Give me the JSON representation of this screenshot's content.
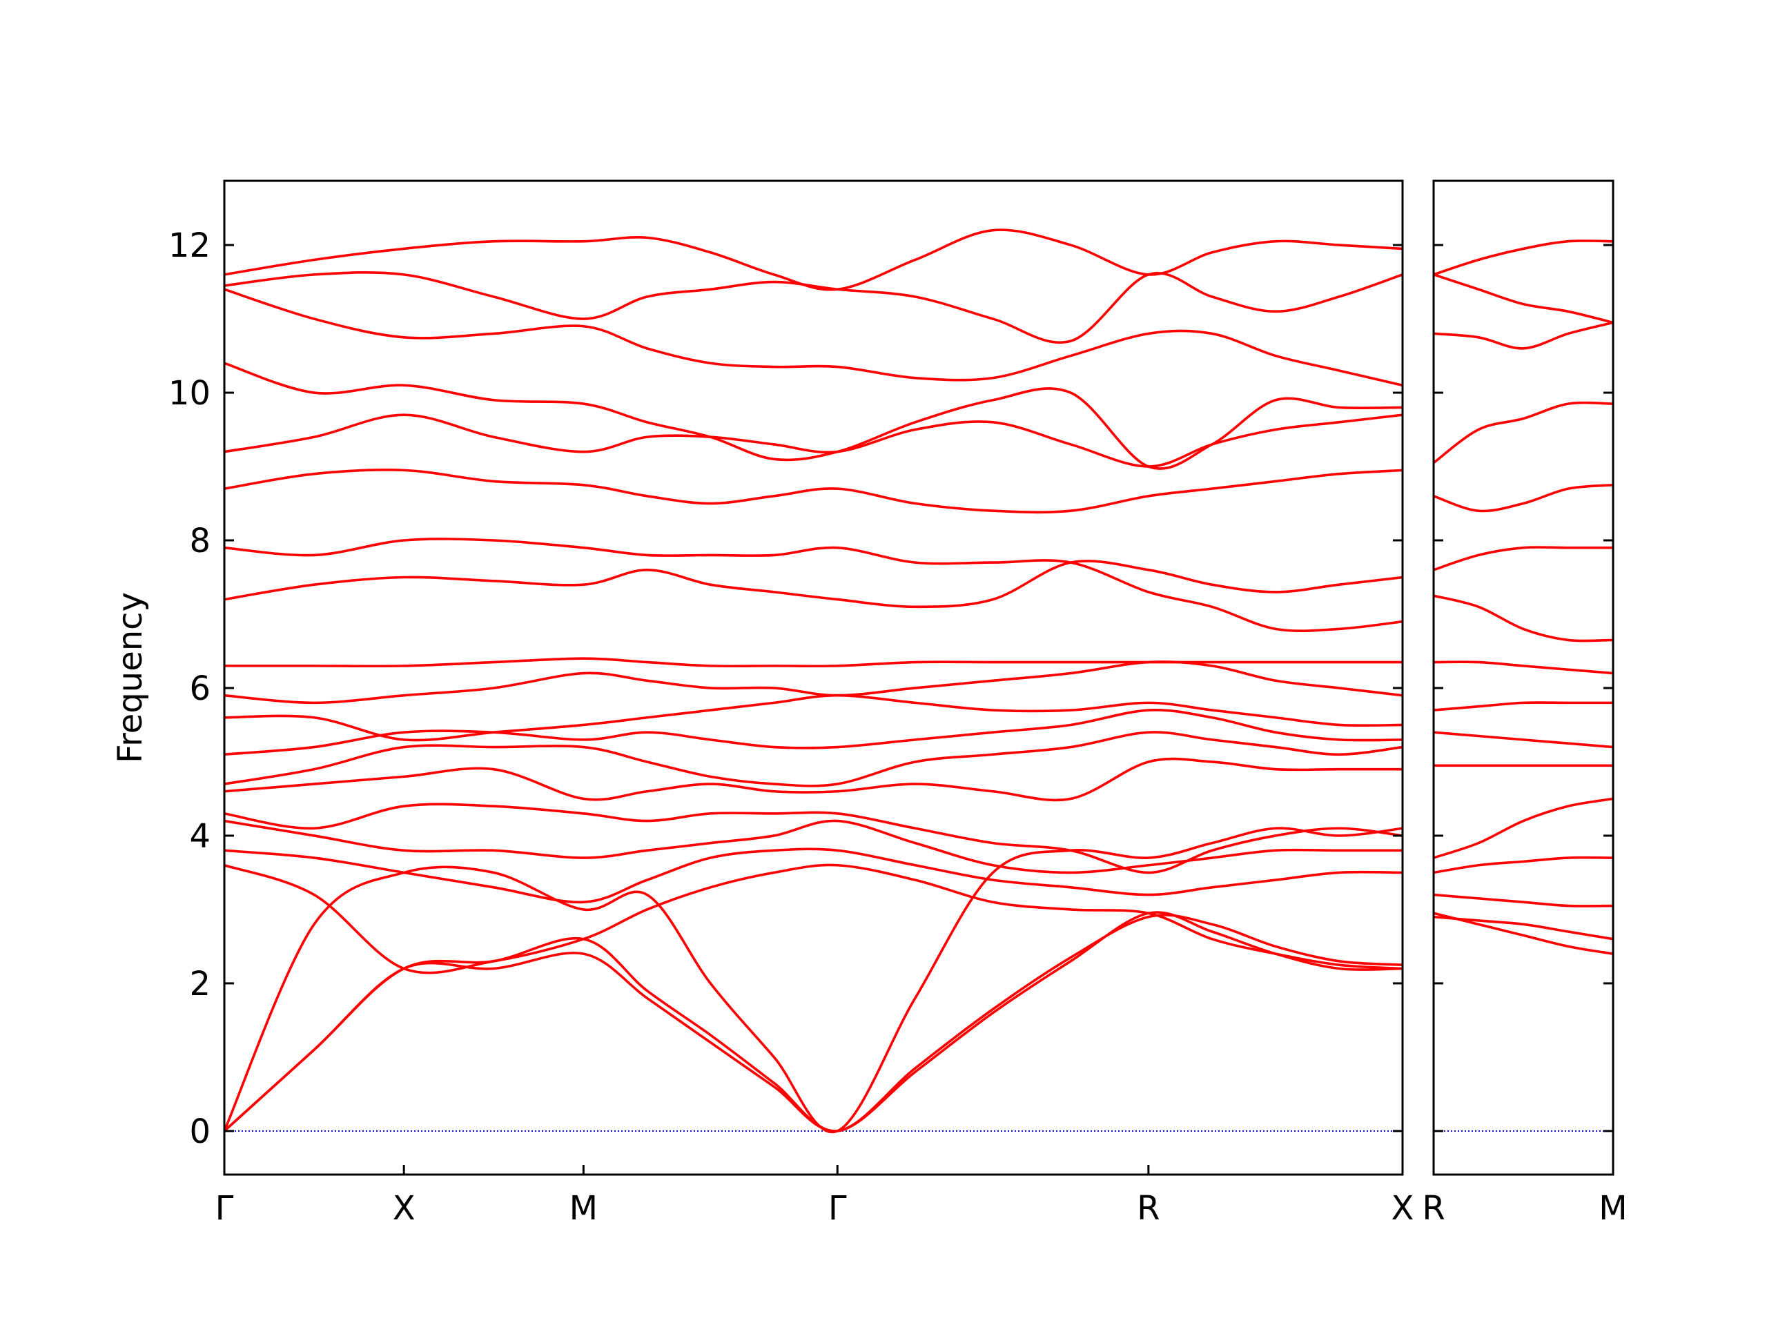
{
  "chart_data": [
    {
      "type": "line",
      "y_label": "Frequency",
      "color": "#ff0000",
      "zero_line_color": "#0000cc",
      "xlim": [
        0,
        6.561
      ],
      "ylim": [
        -0.59,
        12.87
      ],
      "xticks": [
        {
          "value": 0,
          "label": "Γ"
        },
        {
          "value": 1,
          "label": "X"
        },
        {
          "value": 2,
          "label": "M"
        },
        {
          "value": 3.414,
          "label": "Γ"
        },
        {
          "value": 5.146,
          "label": "R"
        },
        {
          "value": 6.561,
          "label": "X"
        }
      ],
      "yticks": [
        0,
        2,
        4,
        6,
        8,
        10,
        12
      ],
      "x": [
        0,
        0.5,
        1,
        1.5,
        2,
        2.354,
        2.707,
        3.061,
        3.414,
        3.847,
        4.28,
        4.713,
        5.146,
        5.5,
        5.854,
        6.207,
        6.561
      ],
      "series": [
        {
          "values": [
            0,
            1.1,
            2.2,
            2.2,
            2.4,
            1.8,
            1.2,
            0.6,
            0,
            0.8,
            1.6,
            2.3,
            2.95,
            2.7,
            2.4,
            2.2,
            2.2
          ]
        },
        {
          "values": [
            0,
            1.1,
            2.2,
            2.3,
            2.6,
            1.9,
            1.3,
            0.65,
            0,
            0.85,
            1.65,
            2.35,
            2.9,
            2.8,
            2.5,
            2.3,
            2.25
          ]
        },
        {
          "values": [
            0,
            2.8,
            3.5,
            3.5,
            3.0,
            3.2,
            2.0,
            1.0,
            0,
            1.8,
            3.5,
            3.8,
            3.7,
            3.9,
            4.1,
            4.0,
            4.1
          ]
        },
        {
          "values": [
            3.6,
            3.2,
            2.2,
            2.3,
            2.6,
            3.0,
            3.3,
            3.5,
            3.6,
            3.4,
            3.1,
            3.0,
            2.95,
            2.6,
            2.4,
            2.25,
            2.2
          ]
        },
        {
          "values": [
            3.8,
            3.7,
            3.5,
            3.3,
            3.1,
            3.4,
            3.7,
            3.8,
            3.8,
            3.6,
            3.4,
            3.3,
            3.2,
            3.3,
            3.4,
            3.5,
            3.5
          ]
        },
        {
          "values": [
            4.2,
            4.0,
            3.8,
            3.8,
            3.7,
            3.8,
            3.9,
            4.0,
            4.2,
            3.9,
            3.6,
            3.5,
            3.6,
            3.7,
            3.8,
            3.8,
            3.8
          ]
        },
        {
          "values": [
            4.3,
            4.1,
            4.4,
            4.4,
            4.3,
            4.2,
            4.3,
            4.3,
            4.3,
            4.1,
            3.9,
            3.8,
            3.5,
            3.8,
            4.0,
            4.1,
            4.0
          ]
        },
        {
          "values": [
            4.6,
            4.7,
            4.8,
            4.9,
            4.5,
            4.6,
            4.7,
            4.6,
            4.6,
            4.7,
            4.6,
            4.5,
            5.0,
            5.0,
            4.9,
            4.9,
            4.9
          ]
        },
        {
          "values": [
            4.7,
            4.9,
            5.2,
            5.2,
            5.2,
            5.0,
            4.8,
            4.7,
            4.7,
            5.0,
            5.1,
            5.2,
            5.4,
            5.3,
            5.2,
            5.1,
            5.2
          ]
        },
        {
          "values": [
            5.1,
            5.2,
            5.4,
            5.4,
            5.3,
            5.4,
            5.3,
            5.2,
            5.2,
            5.3,
            5.4,
            5.5,
            5.7,
            5.6,
            5.4,
            5.3,
            5.3
          ]
        },
        {
          "values": [
            5.6,
            5.6,
            5.3,
            5.4,
            5.5,
            5.6,
            5.7,
            5.8,
            5.9,
            5.8,
            5.7,
            5.7,
            5.8,
            5.7,
            5.6,
            5.5,
            5.5
          ]
        },
        {
          "values": [
            5.9,
            5.8,
            5.9,
            6.0,
            6.2,
            6.1,
            6.0,
            6.0,
            5.9,
            6.0,
            6.1,
            6.2,
            6.35,
            6.3,
            6.1,
            6.0,
            5.9
          ]
        },
        {
          "values": [
            6.3,
            6.3,
            6.3,
            6.35,
            6.4,
            6.35,
            6.3,
            6.3,
            6.3,
            6.35,
            6.35,
            6.35,
            6.35,
            6.35,
            6.35,
            6.35,
            6.35
          ]
        },
        {
          "values": [
            7.2,
            7.4,
            7.5,
            7.45,
            7.4,
            7.6,
            7.4,
            7.3,
            7.2,
            7.1,
            7.2,
            7.7,
            7.6,
            7.4,
            7.3,
            7.4,
            7.5
          ]
        },
        {
          "values": [
            7.9,
            7.8,
            8.0,
            8.0,
            7.9,
            7.8,
            7.8,
            7.8,
            7.9,
            7.7,
            7.7,
            7.7,
            7.3,
            7.1,
            6.8,
            6.8,
            6.9
          ]
        },
        {
          "values": [
            8.7,
            8.9,
            8.95,
            8.8,
            8.75,
            8.6,
            8.5,
            8.6,
            8.7,
            8.5,
            8.4,
            8.4,
            8.6,
            8.7,
            8.8,
            8.9,
            8.95
          ]
        },
        {
          "values": [
            9.2,
            9.4,
            9.7,
            9.4,
            9.2,
            9.4,
            9.4,
            9.3,
            9.2,
            9.5,
            9.6,
            9.3,
            9.0,
            9.3,
            9.5,
            9.6,
            9.7
          ]
        },
        {
          "values": [
            10.4,
            10.0,
            10.1,
            9.9,
            9.85,
            9.6,
            9.4,
            9.1,
            9.2,
            9.6,
            9.9,
            10.0,
            9.0,
            9.3,
            9.9,
            9.8,
            9.8
          ]
        },
        {
          "values": [
            11.4,
            11.0,
            10.75,
            10.8,
            10.9,
            10.6,
            10.4,
            10.35,
            10.35,
            10.2,
            10.2,
            10.5,
            10.8,
            10.8,
            10.5,
            10.3,
            10.1
          ]
        },
        {
          "values": [
            11.45,
            11.6,
            11.6,
            11.3,
            11.0,
            11.3,
            11.4,
            11.5,
            11.4,
            11.3,
            11.0,
            10.7,
            11.6,
            11.3,
            11.1,
            11.3,
            11.6
          ]
        },
        {
          "values": [
            11.6,
            11.8,
            11.95,
            12.05,
            12.05,
            12.1,
            11.9,
            11.6,
            11.4,
            11.8,
            12.2,
            12.0,
            11.6,
            11.9,
            12.05,
            12.0,
            11.95
          ]
        }
      ]
    },
    {
      "type": "line",
      "color": "#ff0000",
      "zero_line_color": "#0000cc",
      "xlim": [
        0,
        1
      ],
      "ylim": [
        -0.59,
        12.87
      ],
      "xticks": [
        {
          "value": 0,
          "label": "R"
        },
        {
          "value": 1,
          "label": "M"
        }
      ],
      "yticks": [
        0,
        2,
        4,
        6,
        8,
        10,
        12
      ],
      "x": [
        0,
        0.25,
        0.5,
        0.75,
        1
      ],
      "series": [
        {
          "values": [
            2.95,
            2.8,
            2.65,
            2.5,
            2.4
          ]
        },
        {
          "values": [
            2.9,
            2.85,
            2.8,
            2.7,
            2.6
          ]
        },
        {
          "values": [
            3.2,
            3.15,
            3.1,
            3.05,
            3.05
          ]
        },
        {
          "values": [
            3.5,
            3.6,
            3.65,
            3.7,
            3.7
          ]
        },
        {
          "values": [
            3.7,
            3.9,
            4.2,
            4.4,
            4.5
          ]
        },
        {
          "values": [
            4.95,
            4.95,
            4.95,
            4.95,
            4.95
          ]
        },
        {
          "values": [
            5.4,
            5.35,
            5.3,
            5.25,
            5.2
          ]
        },
        {
          "values": [
            5.7,
            5.75,
            5.8,
            5.8,
            5.8
          ]
        },
        {
          "values": [
            6.35,
            6.35,
            6.3,
            6.25,
            6.2
          ]
        },
        {
          "values": [
            7.25,
            7.1,
            6.8,
            6.65,
            6.65
          ]
        },
        {
          "values": [
            7.6,
            7.8,
            7.9,
            7.9,
            7.9
          ]
        },
        {
          "values": [
            8.6,
            8.4,
            8.5,
            8.7,
            8.75
          ]
        },
        {
          "values": [
            9.05,
            9.5,
            9.65,
            9.85,
            9.85
          ]
        },
        {
          "values": [
            10.8,
            10.75,
            10.6,
            10.8,
            10.95
          ]
        },
        {
          "values": [
            11.6,
            11.4,
            11.2,
            11.1,
            10.95
          ]
        },
        {
          "values": [
            11.6,
            11.8,
            11.95,
            12.05,
            12.05
          ]
        }
      ]
    }
  ]
}
